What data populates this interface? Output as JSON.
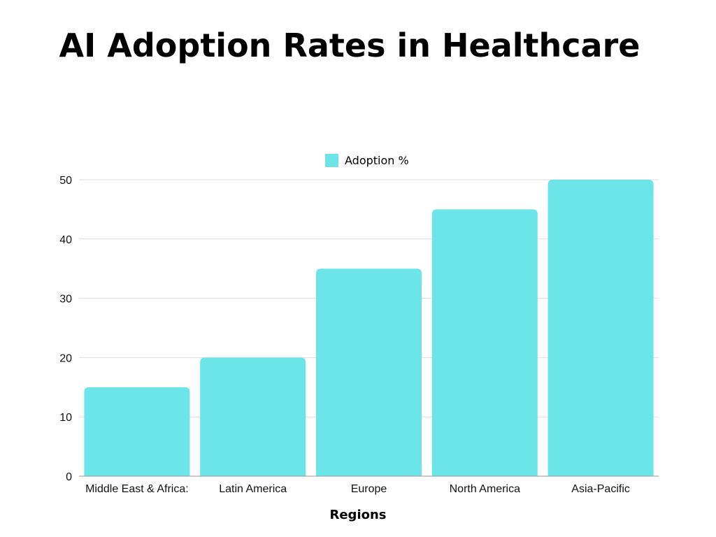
{
  "chart_data": {
    "type": "bar",
    "title": "AI Adoption Rates in Healthcare",
    "xlabel": "Regions",
    "ylabel": "",
    "categories": [
      "Middle East & Africa:",
      "Latin America",
      "Europe",
      "North America",
      "Asia-Pacific"
    ],
    "series": [
      {
        "name": "Adoption %",
        "values": [
          15,
          20,
          35,
          45,
          50
        ],
        "color": "#6BE5E8"
      }
    ],
    "ylim": [
      0,
      50
    ],
    "yticks": [
      0,
      10,
      20,
      30,
      40,
      50
    ],
    "grid": true,
    "legend": "top-center"
  }
}
